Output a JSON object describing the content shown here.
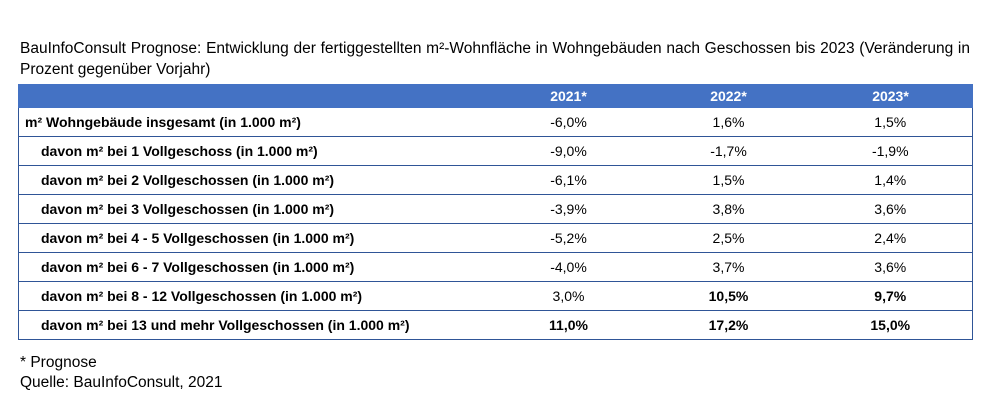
{
  "title": "BauInfoConsult Prognose: Entwicklung der fertiggestellten m²-Wohnfläche in Wohngebäuden nach Geschossen bis 2023 (Veränderung in Prozent gegenüber Vorjahr)",
  "chart_data": {
    "type": "table",
    "columns": [
      "2021*",
      "2022*",
      "2023*"
    ],
    "rows": [
      {
        "label": "m² Wohngebäude insgesamt (in 1.000 m²)",
        "values": [
          "-6,0%",
          "1,6%",
          "1,5%"
        ]
      },
      {
        "label": "davon m² bei 1 Vollgeschoss (in 1.000 m²)",
        "values": [
          "-9,0%",
          "-1,7%",
          "-1,9%"
        ]
      },
      {
        "label": "davon m² bei 2 Vollgeschossen (in 1.000 m²)",
        "values": [
          "-6,1%",
          "1,5%",
          "1,4%"
        ]
      },
      {
        "label": "davon m² bei 3 Vollgeschossen (in 1.000 m²)",
        "values": [
          "-3,9%",
          "3,8%",
          "3,6%"
        ]
      },
      {
        "label": "davon m² bei 4 - 5 Vollgeschossen (in 1.000 m²)",
        "values": [
          "-5,2%",
          "2,5%",
          "2,4%"
        ]
      },
      {
        "label": "davon m² bei 6 - 7 Vollgeschossen (in 1.000 m²)",
        "values": [
          "-4,0%",
          "3,7%",
          "3,6%"
        ]
      },
      {
        "label": "davon m² bei 8 - 12 Vollgeschossen (in 1.000 m²)",
        "values": [
          "3,0%",
          "10,5%",
          "9,7%"
        ]
      },
      {
        "label": "davon m² bei 13 und mehr Vollgeschossen (in 1.000 m²)",
        "values": [
          "11,0%",
          "17,2%",
          "15,0%"
        ]
      }
    ]
  },
  "footnote": "* Prognose",
  "source": "Quelle: BauInfoConsult, 2021",
  "colors": {
    "header_bg": "#4472c4",
    "border": "#2f5597"
  }
}
